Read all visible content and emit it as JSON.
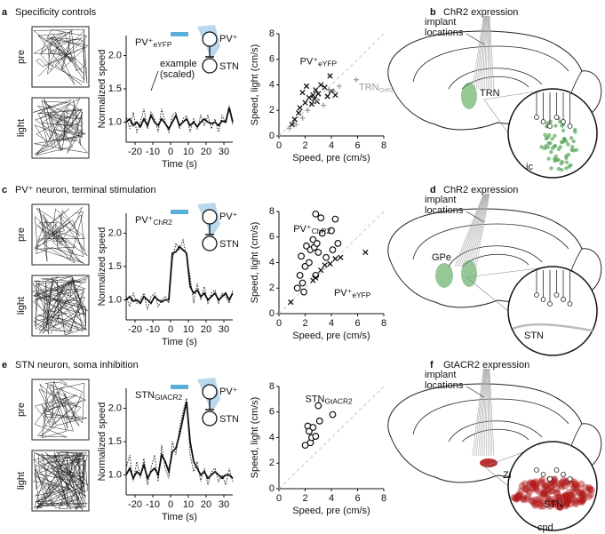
{
  "panels": [
    {
      "letter": "a",
      "title": "Specificity controls"
    },
    {
      "letter": "b",
      "title": "ChR2 expression"
    },
    {
      "letter": "c",
      "title": "PV⁺ neuron, terminal stimulation"
    },
    {
      "letter": "d",
      "title": "ChR2 expression"
    },
    {
      "letter": "e",
      "title": "STN neuron, soma inhibition"
    },
    {
      "letter": "f",
      "title": "GtACR2 expression"
    }
  ],
  "trajectories": [
    {
      "labels": [
        "pre",
        "light"
      ]
    },
    {
      "labels": [
        "pre",
        "light"
      ]
    },
    {
      "labels": [
        "pre",
        "light"
      ]
    }
  ],
  "circuits": [
    {
      "top": "PV⁺",
      "bottom": "STN"
    },
    {
      "top": "PV⁺",
      "bottom": "STN"
    },
    {
      "top": "PV⁺",
      "bottom": "STN"
    }
  ],
  "brains": [
    {
      "implant_label": [
        "implant",
        "locations"
      ],
      "labels": [
        "TRN",
        "ic"
      ],
      "color": "#3f9a3f"
    },
    {
      "implant_label": [
        "implant",
        "locations"
      ],
      "labels": [
        "GPe",
        "STN"
      ],
      "color": "#3f9a3f"
    },
    {
      "implant_label": [
        "implant",
        "locations"
      ],
      "labels": [
        "ZI",
        "STN",
        "cpd"
      ],
      "color": "#b01818"
    }
  ],
  "chart_data": [
    {
      "type": "line",
      "xlabel": "Time (s)",
      "ylabel": "Normalized speed",
      "label": {
        "main": "PV⁺",
        "sub": "eYFP"
      },
      "annotation": [
        "example",
        "(scaled)"
      ],
      "highlight": [
        0,
        10
      ],
      "highlight_color": "#5aaedc",
      "x": [
        -25,
        -23,
        -21,
        -19,
        -17,
        -15,
        -13,
        -11,
        -9,
        -7,
        -5,
        -3,
        -1,
        1,
        3,
        5,
        7,
        9,
        11,
        13,
        15,
        17,
        19,
        21,
        23,
        25,
        27,
        29,
        31,
        33,
        35
      ],
      "series": [
        {
          "color": "#111111",
          "style": "solid",
          "values": [
            1.0,
            1.05,
            0.95,
            1.0,
            0.93,
            1.05,
            0.95,
            1.1,
            1.0,
            0.95,
            1.05,
            0.98,
            0.9,
            1.0,
            1.1,
            0.95,
            1.0,
            1.05,
            0.95,
            1.0,
            0.93,
            1.0,
            1.05,
            1.0,
            0.98,
            1.0,
            0.95,
            1.02,
            1.0,
            1.22,
            1.0
          ]
        },
        {
          "color": "#111111",
          "style": "dotted",
          "values": [
            1.1,
            0.9,
            1.15,
            0.85,
            1.0,
            1.2,
            0.9,
            1.15,
            1.05,
            0.85,
            1.2,
            1.0,
            0.85,
            1.1,
            1.15,
            0.9,
            1.05,
            1.1,
            0.85,
            1.05,
            0.9,
            1.1,
            0.95,
            1.1,
            0.9,
            1.05,
            0.85,
            1.1,
            1.0,
            1.25,
            0.95
          ]
        }
      ],
      "xlim": [
        -25,
        35
      ],
      "xticks": [
        -20,
        -10,
        0,
        10,
        20,
        30
      ],
      "ylim": [
        0.7,
        2.3
      ],
      "yticks": [
        {
          "value": 1,
          "label": "1.0"
        },
        {
          "value": 1.5,
          "label": "1.5"
        },
        {
          "value": 2,
          "label": "2.0"
        }
      ]
    },
    {
      "type": "scatter",
      "xlabel": "Speed, pre (cm/s)",
      "ylabel": "Speed, light (cm/s)",
      "series": [
        {
          "name": "PV⁺",
          "name_sub": "eYFP",
          "color": "#111111",
          "marker": "x",
          "x": [
            1.0,
            1.2,
            1.5,
            1.6,
            1.8,
            2.0,
            2.1,
            2.3,
            2.5,
            2.6,
            2.7,
            2.8,
            2.9,
            3.0,
            3.2,
            3.5,
            3.7,
            3.9,
            4.0,
            4.3
          ],
          "values": [
            0.9,
            1.3,
            1.8,
            2.2,
            3.4,
            2.6,
            3.9,
            3.0,
            2.5,
            3.2,
            2.9,
            3.6,
            2.7,
            3.3,
            4.0,
            3.8,
            3.1,
            4.7,
            3.5,
            3.2
          ]
        },
        {
          "name": "TRN",
          "name_sub": "ChR2",
          "color": "#9a9a9a",
          "marker": "+",
          "x": [
            0.8,
            1.3,
            1.8,
            2.2,
            2.9,
            3.4,
            3.8,
            4.2,
            4.6,
            5.9
          ],
          "values": [
            0.6,
            0.9,
            1.4,
            2.0,
            2.8,
            2.4,
            3.6,
            3.5,
            3.9,
            4.4
          ]
        }
      ],
      "xlim": [
        0,
        8
      ],
      "xticks": [
        0,
        2,
        4,
        6,
        8
      ],
      "ylim": [
        0,
        8
      ],
      "yticks": [
        0,
        2,
        4,
        6,
        8
      ]
    },
    {
      "type": "line",
      "xlabel": "Time (s)",
      "ylabel": "Normalized speed",
      "label": {
        "main": "PV⁺",
        "sub": "ChR2"
      },
      "highlight": [
        0,
        10
      ],
      "highlight_color": "#5aaedc",
      "x": [
        -25,
        -23,
        -21,
        -19,
        -17,
        -15,
        -13,
        -11,
        -9,
        -7,
        -5,
        -3,
        -1,
        1,
        3,
        5,
        7,
        9,
        11,
        13,
        15,
        17,
        19,
        21,
        23,
        25,
        27,
        29,
        31,
        33,
        35
      ],
      "series": [
        {
          "color": "#111111",
          "style": "solid",
          "values": [
            1.0,
            1.05,
            0.98,
            1.0,
            0.95,
            1.05,
            1.0,
            0.95,
            1.05,
            1.0,
            0.97,
            1.0,
            1.0,
            1.7,
            1.72,
            1.8,
            1.75,
            1.7,
            1.2,
            1.1,
            1.15,
            1.05,
            1.1,
            1.0,
            1.05,
            1.1,
            1.0,
            1.05,
            1.1,
            1.0,
            1.1
          ]
        },
        {
          "color": "#111111",
          "style": "dotted",
          "values": [
            1.05,
            0.9,
            1.1,
            0.95,
            1.0,
            1.1,
            0.85,
            1.05,
            1.1,
            0.9,
            1.0,
            1.05,
            0.95,
            1.6,
            1.85,
            1.75,
            1.9,
            1.65,
            1.35,
            0.95,
            1.25,
            1.0,
            1.2,
            0.95,
            1.1,
            1.15,
            0.95,
            1.1,
            1.05,
            0.95,
            1.15
          ]
        }
      ],
      "xlim": [
        -25,
        35
      ],
      "xticks": [
        -20,
        -10,
        0,
        10,
        20,
        30
      ],
      "ylim": [
        0.7,
        2.3
      ],
      "yticks": [
        {
          "value": 1,
          "label": "1.0"
        },
        {
          "value": 1.5,
          "label": "1.5"
        },
        {
          "value": 2,
          "label": "2.0"
        }
      ]
    },
    {
      "type": "scatter",
      "xlabel": "Speed, pre (cm/s)",
      "ylabel": "Speed, light (cm/s)",
      "series": [
        {
          "name": "PV⁺",
          "name_sub": "ChR2",
          "color": "#111111",
          "marker": "o",
          "x": [
            1.4,
            1.6,
            1.7,
            1.8,
            2.0,
            2.1,
            2.3,
            2.4,
            2.6,
            2.7,
            2.8,
            2.9,
            3.0,
            3.2,
            3.3,
            3.6,
            4.0,
            4.1,
            4.3,
            4.5,
            2.8,
            1.9
          ],
          "values": [
            2.0,
            3.0,
            4.5,
            2.4,
            3.7,
            5.3,
            4.0,
            5.0,
            5.8,
            5.2,
            7.8,
            5.5,
            4.8,
            7.5,
            6.3,
            4.4,
            6.5,
            5.0,
            7.4,
            5.5,
            3.0,
            1.7
          ]
        },
        {
          "name": "PV⁺",
          "name_sub": "eYFP",
          "color": "#111111",
          "marker": "x",
          "x": [
            0.9,
            2.6,
            2.8,
            3.2,
            3.5,
            3.9,
            4.3,
            4.7,
            6.6
          ],
          "values": [
            0.9,
            2.6,
            2.8,
            3.4,
            3.8,
            3.9,
            4.3,
            4.4,
            4.8
          ]
        }
      ],
      "xlim": [
        0,
        8
      ],
      "xticks": [
        0,
        2,
        4,
        6,
        8
      ],
      "ylim": [
        0,
        8
      ],
      "yticks": [
        0,
        2,
        4,
        6,
        8
      ]
    },
    {
      "type": "line",
      "xlabel": "Time (s)",
      "ylabel": "Normalized speed",
      "label": {
        "main": "STN",
        "sub": "GtACR2"
      },
      "highlight": [
        0,
        10
      ],
      "highlight_color": "#5aaedc",
      "x": [
        -25,
        -23,
        -21,
        -19,
        -17,
        -15,
        -13,
        -11,
        -9,
        -7,
        -5,
        -3,
        -1,
        1,
        3,
        5,
        7,
        9,
        11,
        13,
        15,
        17,
        19,
        21,
        23,
        25,
        27,
        29,
        31,
        33,
        35
      ],
      "series": [
        {
          "color": "#111111",
          "style": "solid",
          "values": [
            1.0,
            1.1,
            0.95,
            1.05,
            1.0,
            1.15,
            0.95,
            1.05,
            1.1,
            1.0,
            1.3,
            1.2,
            1.05,
            1.35,
            1.4,
            1.6,
            1.85,
            2.1,
            1.5,
            1.2,
            1.1,
            1.0,
            1.05,
            0.95,
            1.0,
            1.05,
            1.0,
            0.95,
            1.0,
            1.0,
            0.95
          ]
        },
        {
          "color": "#111111",
          "style": "dotted",
          "values": [
            1.1,
            1.3,
            0.9,
            1.2,
            0.95,
            1.25,
            0.85,
            1.1,
            1.3,
            0.9,
            1.45,
            1.1,
            0.95,
            1.5,
            1.3,
            1.7,
            1.95,
            2.15,
            1.3,
            1.05,
            1.2,
            0.9,
            1.1,
            0.85,
            1.05,
            1.1,
            0.9,
            1.0,
            0.85,
            1.1,
            0.9
          ]
        }
      ],
      "xlim": [
        -25,
        35
      ],
      "xticks": [
        -20,
        -10,
        0,
        10,
        20,
        30
      ],
      "ylim": [
        0.7,
        2.3
      ],
      "yticks": [
        {
          "value": 1,
          "label": "1.0"
        },
        {
          "value": 1.5,
          "label": "1.5"
        },
        {
          "value": 2,
          "label": "2.0"
        }
      ]
    },
    {
      "type": "scatter",
      "xlabel": "Speed, pre (cm/s)",
      "ylabel": "Speed, light (cm/s)",
      "series": [
        {
          "name": "STN",
          "name_sub": "GtACR2",
          "color": "#111111",
          "marker": "o",
          "x": [
            2.0,
            2.2,
            2.3,
            2.4,
            2.5,
            2.6,
            2.8,
            3.0,
            3.1,
            4.1
          ],
          "values": [
            3.4,
            4.9,
            4.5,
            3.6,
            4.0,
            4.8,
            4.1,
            6.5,
            5.3,
            5.8
          ]
        }
      ],
      "xlim": [
        0,
        8
      ],
      "xticks": [
        0,
        2,
        4,
        6,
        8
      ],
      "ylim": [
        0,
        8
      ],
      "yticks": [
        0,
        2,
        4,
        6,
        8
      ]
    }
  ]
}
